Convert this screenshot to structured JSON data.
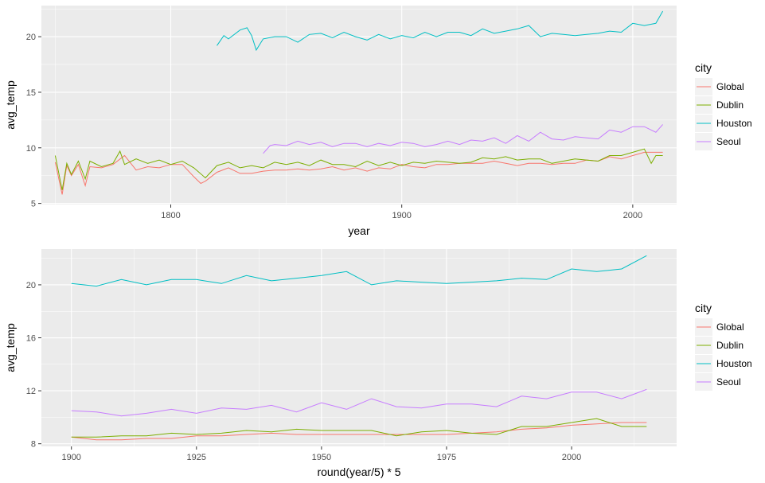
{
  "colors": {
    "panel_bg": "#EBEBEB",
    "grid_major": "#FFFFFF",
    "legend_key_bg": "#F2F2F2",
    "text": "#4D4D4D"
  },
  "chart_data": [
    {
      "type": "line",
      "xlabel": "year",
      "ylabel": "avg_temp",
      "xlim": [
        1744,
        2019
      ],
      "ylim": [
        4.9,
        22.8
      ],
      "xticks": [
        1800,
        1900,
        2000
      ],
      "yticks": [
        5,
        10,
        15,
        20
      ],
      "grid": true,
      "legend": {
        "title": "city",
        "position": "right"
      },
      "series": [
        {
          "name": "Global",
          "color": "#F8766D",
          "x": [
            1750,
            1753,
            1755,
            1757,
            1760,
            1763,
            1765,
            1770,
            1775,
            1780,
            1785,
            1790,
            1795,
            1800,
            1805,
            1810,
            1813,
            1815,
            1820,
            1825,
            1830,
            1835,
            1840,
            1845,
            1850,
            1855,
            1860,
            1865,
            1870,
            1875,
            1880,
            1885,
            1890,
            1895,
            1900,
            1905,
            1910,
            1915,
            1920,
            1925,
            1930,
            1935,
            1940,
            1945,
            1950,
            1955,
            1960,
            1965,
            1970,
            1975,
            1980,
            1985,
            1990,
            1995,
            2000,
            2005,
            2010,
            2013
          ],
          "y": [
            8.7,
            5.8,
            8.4,
            7.5,
            8.5,
            6.6,
            8.3,
            8.2,
            8.5,
            9.3,
            8.0,
            8.3,
            8.2,
            8.5,
            8.5,
            7.4,
            6.8,
            7.0,
            7.8,
            8.2,
            7.7,
            7.7,
            7.9,
            8.0,
            8.0,
            8.1,
            8.0,
            8.1,
            8.3,
            8.0,
            8.2,
            7.9,
            8.2,
            8.1,
            8.5,
            8.3,
            8.2,
            8.5,
            8.5,
            8.6,
            8.6,
            8.6,
            8.8,
            8.6,
            8.4,
            8.6,
            8.6,
            8.5,
            8.6,
            8.6,
            8.9,
            8.8,
            9.2,
            9.0,
            9.3,
            9.6,
            9.6,
            9.6
          ]
        },
        {
          "name": "Dublin",
          "color": "#7CAE00",
          "x": [
            1750,
            1753,
            1755,
            1757,
            1760,
            1763,
            1765,
            1770,
            1775,
            1778,
            1780,
            1785,
            1790,
            1795,
            1800,
            1805,
            1810,
            1815,
            1820,
            1825,
            1830,
            1835,
            1840,
            1845,
            1850,
            1855,
            1860,
            1865,
            1870,
            1875,
            1880,
            1885,
            1890,
            1895,
            1900,
            1905,
            1910,
            1915,
            1920,
            1925,
            1930,
            1935,
            1940,
            1945,
            1950,
            1955,
            1960,
            1965,
            1970,
            1975,
            1980,
            1985,
            1990,
            1995,
            2000,
            2005,
            2008,
            2010,
            2013
          ],
          "y": [
            9.3,
            6.2,
            8.6,
            7.6,
            8.8,
            7.2,
            8.8,
            8.3,
            8.6,
            9.7,
            8.5,
            9.0,
            8.6,
            8.9,
            8.5,
            8.8,
            8.2,
            7.3,
            8.4,
            8.7,
            8.2,
            8.4,
            8.2,
            8.7,
            8.5,
            8.7,
            8.4,
            8.9,
            8.5,
            8.5,
            8.3,
            8.8,
            8.4,
            8.7,
            8.4,
            8.7,
            8.6,
            8.8,
            8.7,
            8.6,
            8.7,
            9.1,
            9.0,
            9.2,
            8.9,
            9.0,
            9.0,
            8.6,
            8.8,
            9.0,
            8.9,
            8.8,
            9.3,
            9.3,
            9.6,
            9.9,
            8.6,
            9.3,
            9.3
          ]
        },
        {
          "name": "Houston",
          "color": "#00BFC4",
          "x": [
            1820,
            1823,
            1825,
            1830,
            1833,
            1835,
            1837,
            1840,
            1845,
            1850,
            1855,
            1860,
            1865,
            1870,
            1875,
            1880,
            1885,
            1890,
            1895,
            1900,
            1905,
            1910,
            1915,
            1920,
            1925,
            1930,
            1935,
            1940,
            1945,
            1950,
            1955,
            1960,
            1965,
            1970,
            1975,
            1980,
            1985,
            1990,
            1995,
            2000,
            2005,
            2010,
            2013
          ],
          "y": [
            19.2,
            20.1,
            19.8,
            20.6,
            20.8,
            20.1,
            18.8,
            19.8,
            20.0,
            20.0,
            19.5,
            20.2,
            20.3,
            19.9,
            20.4,
            20.0,
            19.7,
            20.2,
            19.8,
            20.1,
            19.9,
            20.4,
            20.0,
            20.4,
            20.4,
            20.1,
            20.7,
            20.3,
            20.5,
            20.7,
            21.0,
            20.0,
            20.3,
            20.2,
            20.1,
            20.2,
            20.3,
            20.5,
            20.4,
            21.2,
            21.0,
            21.2,
            22.3
          ]
        },
        {
          "name": "Seoul",
          "color": "#C77CFF",
          "x": [
            1840,
            1843,
            1845,
            1850,
            1855,
            1860,
            1865,
            1870,
            1875,
            1880,
            1885,
            1890,
            1895,
            1900,
            1905,
            1910,
            1915,
            1920,
            1925,
            1930,
            1935,
            1940,
            1945,
            1950,
            1955,
            1960,
            1965,
            1970,
            1975,
            1980,
            1985,
            1990,
            1995,
            2000,
            2005,
            2010,
            2013
          ],
          "y": [
            9.5,
            10.2,
            10.3,
            10.2,
            10.6,
            10.3,
            10.5,
            10.1,
            10.4,
            10.4,
            10.1,
            10.4,
            10.2,
            10.5,
            10.4,
            10.1,
            10.3,
            10.6,
            10.3,
            10.7,
            10.6,
            10.9,
            10.4,
            11.1,
            10.6,
            11.4,
            10.8,
            10.7,
            11.0,
            10.9,
            10.8,
            11.6,
            11.4,
            11.9,
            11.9,
            11.4,
            12.1
          ]
        }
      ]
    },
    {
      "type": "line",
      "xlabel": "round(year/5) * 5",
      "ylabel": "avg_temp",
      "xlim": [
        1894,
        2021
      ],
      "ylim": [
        7.8,
        22.7
      ],
      "xticks": [
        1900,
        1925,
        1950,
        1975,
        2000
      ],
      "yticks": [
        8,
        12,
        16,
        20
      ],
      "grid": true,
      "legend": {
        "title": "city",
        "position": "right"
      },
      "series": [
        {
          "name": "Global",
          "color": "#F8766D",
          "x": [
            1900,
            1905,
            1910,
            1915,
            1920,
            1925,
            1930,
            1935,
            1940,
            1945,
            1950,
            1955,
            1960,
            1965,
            1970,
            1975,
            1980,
            1985,
            1990,
            1995,
            2000,
            2005,
            2010,
            2015
          ],
          "y": [
            8.5,
            8.3,
            8.3,
            8.4,
            8.4,
            8.6,
            8.6,
            8.7,
            8.8,
            8.7,
            8.7,
            8.7,
            8.7,
            8.7,
            8.7,
            8.7,
            8.8,
            8.9,
            9.1,
            9.2,
            9.4,
            9.5,
            9.6,
            9.6
          ]
        },
        {
          "name": "Dublin",
          "color": "#7CAE00",
          "x": [
            1900,
            1905,
            1910,
            1915,
            1920,
            1925,
            1930,
            1935,
            1940,
            1945,
            1950,
            1955,
            1960,
            1965,
            1970,
            1975,
            1980,
            1985,
            1990,
            1995,
            2000,
            2005,
            2010,
            2015
          ],
          "y": [
            8.5,
            8.5,
            8.6,
            8.6,
            8.8,
            8.7,
            8.8,
            9.0,
            8.9,
            9.1,
            9.0,
            9.0,
            9.0,
            8.6,
            8.9,
            9.0,
            8.8,
            8.7,
            9.3,
            9.3,
            9.6,
            9.9,
            9.3,
            9.3
          ]
        },
        {
          "name": "Houston",
          "color": "#00BFC4",
          "x": [
            1900,
            1905,
            1910,
            1915,
            1920,
            1925,
            1930,
            1935,
            1940,
            1945,
            1950,
            1955,
            1960,
            1965,
            1970,
            1975,
            1980,
            1985,
            1990,
            1995,
            2000,
            2005,
            2010,
            2015
          ],
          "y": [
            20.1,
            19.9,
            20.4,
            20.0,
            20.4,
            20.4,
            20.1,
            20.7,
            20.3,
            20.5,
            20.7,
            21.0,
            20.0,
            20.3,
            20.2,
            20.1,
            20.2,
            20.3,
            20.5,
            20.4,
            21.2,
            21.0,
            21.2,
            22.2
          ]
        },
        {
          "name": "Seoul",
          "color": "#C77CFF",
          "x": [
            1900,
            1905,
            1910,
            1915,
            1920,
            1925,
            1930,
            1935,
            1940,
            1945,
            1950,
            1955,
            1960,
            1965,
            1970,
            1975,
            1980,
            1985,
            1990,
            1995,
            2000,
            2005,
            2010,
            2015
          ],
          "y": [
            10.5,
            10.4,
            10.1,
            10.3,
            10.6,
            10.3,
            10.7,
            10.6,
            10.9,
            10.4,
            11.1,
            10.6,
            11.4,
            10.8,
            10.7,
            11.0,
            11.0,
            10.8,
            11.6,
            11.4,
            11.9,
            11.9,
            11.4,
            12.1
          ]
        }
      ]
    }
  ]
}
